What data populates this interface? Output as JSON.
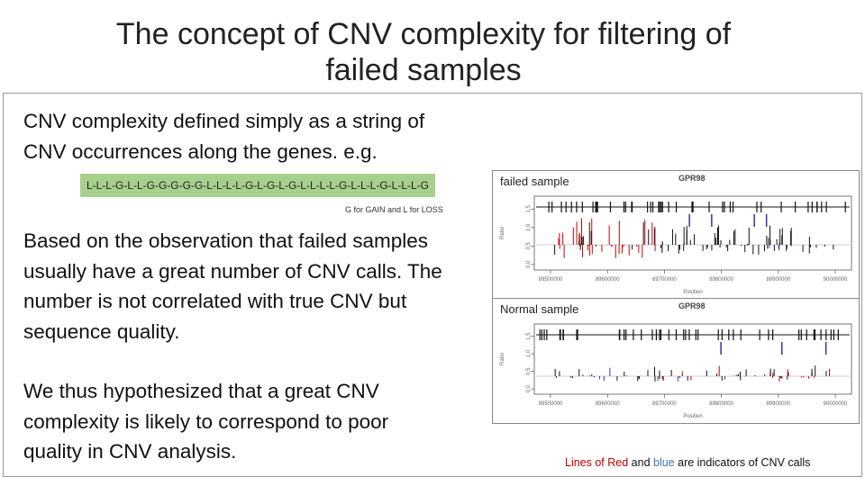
{
  "slide": {
    "title_line1": "The concept of CNV complexity for filtering of",
    "title_line2": "failed samples",
    "text1_line1": "CNV complexity defined simply as a string of",
    "text1_line2": "CNV occurrences along the genes. e.g.",
    "cnv_string": "L-L-L-G-L-L-G-G-G-G-G-L-L-L-L-G-L-G-L-G-L-L-L-L-G-L-L-L-G-L-L-L-G",
    "cnv_legend": "G for GAIN and L for LOSS",
    "text2_line1": "Based on the observation that failed samples",
    "text2_line2": "usually have a great number of CNV calls. The",
    "text2_line3": "number is not correlated with true CNV but",
    "text2_line4": "sequence quality.",
    "text3_line1": "We thus hypothesized that a great CNV",
    "text3_line2": "complexity is likely to correspond to poor",
    "text3_line3": "quality in CNV analysis.",
    "footer_red": "Lines of Red",
    "footer_and": " and ",
    "footer_blue": "blue",
    "footer_rest": " are indicators of CNV calls"
  },
  "plots": {
    "failed": {
      "label": "failed sample",
      "gene": "GPR98",
      "xticks": [
        "89500000",
        "89600000",
        "89700000",
        "89800000",
        "89900000",
        "90000000"
      ],
      "yticks": [
        "0.0",
        "0.5",
        "1.0",
        "1.5"
      ],
      "xlabel": "Position",
      "ylabel": "Ratio"
    },
    "normal": {
      "label": "Normal sample",
      "gene": "GPR98",
      "xticks": [
        "89500000",
        "89600000",
        "89700000",
        "89800000",
        "89900000",
        "90000000"
      ],
      "yticks": [
        "0.0",
        "0.5",
        "1.0",
        "1.5"
      ],
      "xlabel": "Position",
      "ylabel": "Ratio"
    },
    "colors": {
      "red": "#cc0000",
      "blue": "#3333aa",
      "black": "#111111"
    }
  }
}
